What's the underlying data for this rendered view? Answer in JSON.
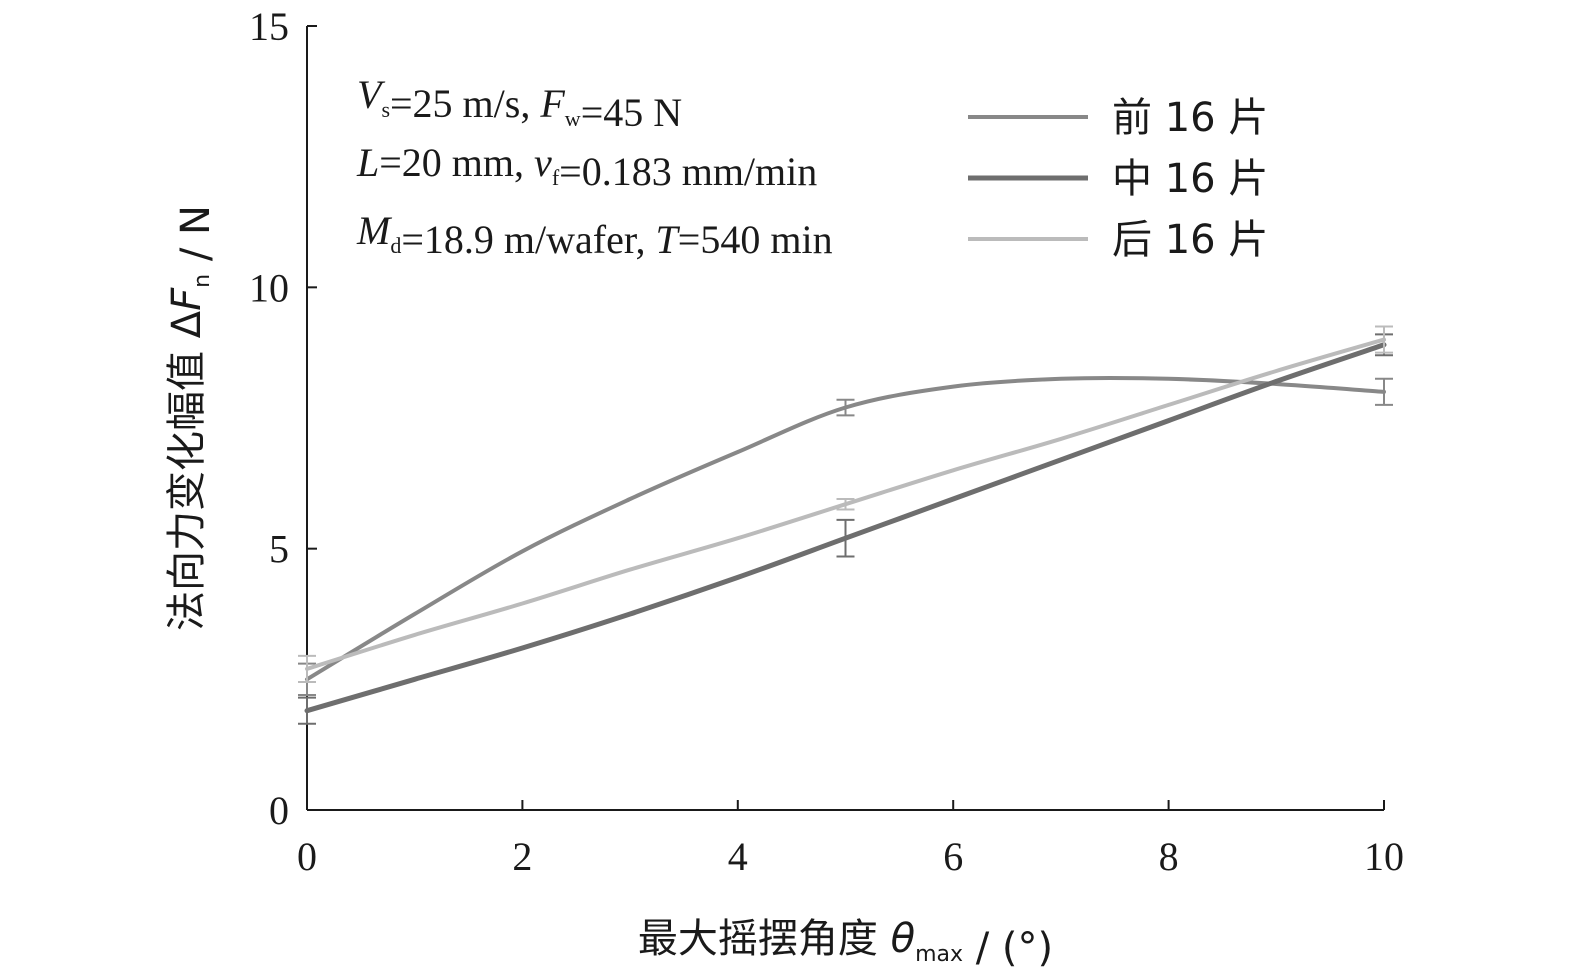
{
  "chart_data": {
    "type": "line",
    "xlabel": {
      "main": "最大摇摆角度 ",
      "sym": "θ",
      "sub": "max",
      "unit": " / (°)"
    },
    "ylabel": {
      "main": "法向力变化幅值 Δ",
      "sym": "F",
      "sub": "n",
      "unit": " / N"
    },
    "xlim": [
      0,
      10
    ],
    "ylim": [
      0,
      15
    ],
    "xticks": [
      "0",
      "2",
      "4",
      "6",
      "8",
      "10"
    ],
    "yticks": [
      "0",
      "5",
      "10",
      "15"
    ],
    "grid": false,
    "legend_position": "top-right",
    "annotations": [
      [
        {
          "t": "V",
          "i": true
        },
        {
          "t": "s",
          "sub": true
        },
        {
          "t": "=25 m/s, "
        },
        {
          "t": "F",
          "i": true
        },
        {
          "t": "w",
          "sub": true
        },
        {
          "t": "=45 N"
        }
      ],
      [
        {
          "t": "L",
          "i": true
        },
        {
          "t": "=20 mm, "
        },
        {
          "t": "v",
          "i": true
        },
        {
          "t": "f",
          "sub": true
        },
        {
          "t": "=0.183 mm/min"
        }
      ],
      [
        {
          "t": "M",
          "i": true
        },
        {
          "t": "d",
          "sub": true
        },
        {
          "t": "=18.9 m/wafer, "
        },
        {
          "t": "T",
          "i": true
        },
        {
          "t": "=540 min"
        }
      ]
    ],
    "series": [
      {
        "name": "前 16 片",
        "color": "#888888",
        "width": 4,
        "points": [
          {
            "x": 0,
            "y": 2.5,
            "err": 0.3
          },
          {
            "x": 5,
            "y": 7.7,
            "err": 0.15
          },
          {
            "x": 10,
            "y": 8.0,
            "err": 0.25
          }
        ],
        "curve": [
          [
            0,
            2.5
          ],
          [
            1,
            3.75
          ],
          [
            2,
            4.95
          ],
          [
            3,
            5.95
          ],
          [
            4,
            6.85
          ],
          [
            5,
            7.7
          ],
          [
            6,
            8.1
          ],
          [
            7,
            8.25
          ],
          [
            8,
            8.25
          ],
          [
            9,
            8.15
          ],
          [
            10,
            8.0
          ]
        ]
      },
      {
        "name": "中 16 片",
        "color": "#6e6e6e",
        "width": 5,
        "points": [
          {
            "x": 0,
            "y": 1.9,
            "err": 0.25
          },
          {
            "x": 5,
            "y": 5.2,
            "err": 0.35
          },
          {
            "x": 10,
            "y": 8.9,
            "err": 0.2
          }
        ],
        "curve": [
          [
            0,
            1.9
          ],
          [
            1,
            2.5
          ],
          [
            2,
            3.1
          ],
          [
            3,
            3.75
          ],
          [
            4,
            4.45
          ],
          [
            5,
            5.2
          ],
          [
            6,
            5.95
          ],
          [
            7,
            6.7
          ],
          [
            8,
            7.45
          ],
          [
            9,
            8.2
          ],
          [
            10,
            8.9
          ]
        ]
      },
      {
        "name": "后 16 片",
        "color": "#bbbbbb",
        "width": 4,
        "points": [
          {
            "x": 0,
            "y": 2.7,
            "err": 0.25
          },
          {
            "x": 5,
            "y": 5.85,
            "err": 0.1
          },
          {
            "x": 10,
            "y": 9.0,
            "err": 0.25
          }
        ],
        "curve": [
          [
            0,
            2.7
          ],
          [
            1,
            3.35
          ],
          [
            2,
            3.95
          ],
          [
            3,
            4.6
          ],
          [
            4,
            5.2
          ],
          [
            5,
            5.85
          ],
          [
            6,
            6.5
          ],
          [
            7,
            7.1
          ],
          [
            8,
            7.75
          ],
          [
            9,
            8.4
          ],
          [
            10,
            9.0
          ]
        ]
      }
    ]
  }
}
